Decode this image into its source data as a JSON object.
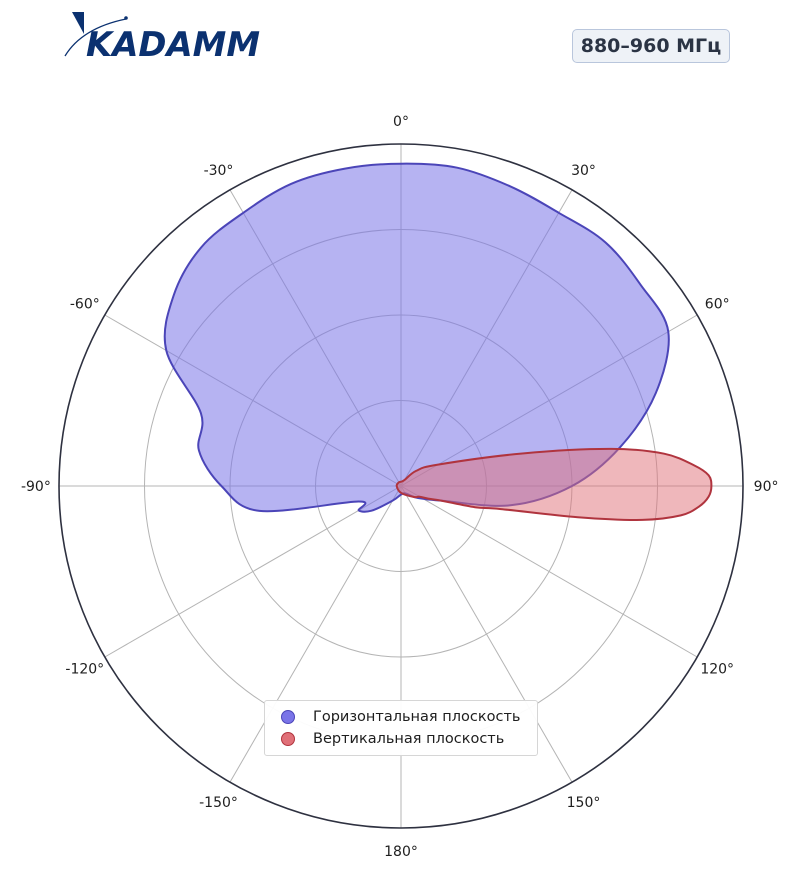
{
  "brand": {
    "name": "KADAMM",
    "color": "#0b3170"
  },
  "badge": {
    "label": "880–960 МГц"
  },
  "chart_data": {
    "type": "polar-area",
    "theta_direction": "clockwise",
    "theta_zero": "top",
    "theta_ticks": [
      0,
      30,
      60,
      90,
      120,
      150,
      180,
      -150,
      -120,
      -90,
      -60,
      -30
    ],
    "theta_tick_labels": [
      "0°",
      "30°",
      "60°",
      "90°",
      "120°",
      "150°",
      "180°",
      "-150°",
      "-120°",
      "-90°",
      "-60°",
      "-30°"
    ],
    "r_range": [
      0,
      4
    ],
    "r_gridlines": [
      1,
      2,
      3,
      4
    ],
    "grid": true,
    "legend_position": "bottom-center",
    "series": [
      {
        "name": "Горизонтальная плоскость",
        "color": "#7a74e8",
        "edge_color": "#4b45b8",
        "theta": [
          0,
          10,
          20,
          30,
          40,
          50,
          60,
          70,
          80,
          90,
          100,
          110,
          120,
          130,
          150,
          180,
          210,
          230,
          240,
          250,
          260,
          270,
          280,
          290,
          300,
          310,
          320,
          330,
          340,
          350
        ],
        "r": [
          3.77,
          3.78,
          3.73,
          3.69,
          3.72,
          3.66,
          3.61,
          3.17,
          2.6,
          2.0,
          1.3,
          0.5,
          0.3,
          0.2,
          0.1,
          0.1,
          0.2,
          0.45,
          0.57,
          0.53,
          1.68,
          2.1,
          2.4,
          2.49,
          3.17,
          3.47,
          3.64,
          3.69,
          3.76,
          3.77
        ]
      },
      {
        "name": "Вертикальная плоскость",
        "color": "#e07078",
        "edge_color": "#b0343e",
        "theta": [
          0,
          30,
          45,
          60,
          75,
          80,
          83,
          86,
          88,
          90,
          92,
          94,
          96,
          98,
          100,
          103,
          106,
          110,
          115,
          120,
          130,
          180,
          270,
          330
        ],
        "r": [
          0.05,
          0.08,
          0.25,
          0.5,
          1.47,
          2.5,
          3.1,
          3.44,
          3.6,
          3.63,
          3.6,
          3.49,
          3.29,
          2.85,
          2.1,
          1.2,
          0.9,
          0.5,
          0.35,
          0.25,
          0.2,
          0.08,
          0.05,
          0.05
        ]
      }
    ]
  }
}
